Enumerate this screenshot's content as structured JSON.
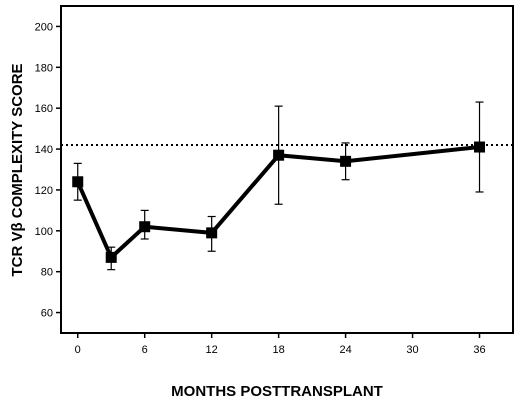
{
  "chart_data": {
    "type": "line",
    "xlabel": "MONTHS POSTTRANSPLANT",
    "ylabel": "TCR Vβ COMPLEXITY SCORE",
    "xlim": [
      -1.5,
      39
    ],
    "ylim": [
      50,
      210
    ],
    "x_ticks": [
      0,
      6,
      12,
      18,
      24,
      30,
      36
    ],
    "y_ticks": [
      60,
      80,
      100,
      120,
      140,
      160,
      180,
      200
    ],
    "grid": false,
    "legend": "none",
    "series": [
      {
        "color": "#000000",
        "marker": "square",
        "points": [
          {
            "x": 0,
            "y": 124,
            "err_low": 115,
            "err_high": 133
          },
          {
            "x": 3,
            "y": 87,
            "err_low": 81,
            "err_high": 92
          },
          {
            "x": 6,
            "y": 102,
            "err_low": 96,
            "err_high": 110
          },
          {
            "x": 12,
            "y": 99,
            "err_low": 90,
            "err_high": 107
          },
          {
            "x": 18,
            "y": 137,
            "err_low": 113,
            "err_high": 161
          },
          {
            "x": 24,
            "y": 134,
            "err_low": 125,
            "err_high": 143
          },
          {
            "x": 36,
            "y": 141,
            "err_low": 119,
            "err_high": 163
          }
        ]
      }
    ],
    "reference_line": {
      "y": 142,
      "style": "dotted"
    }
  }
}
